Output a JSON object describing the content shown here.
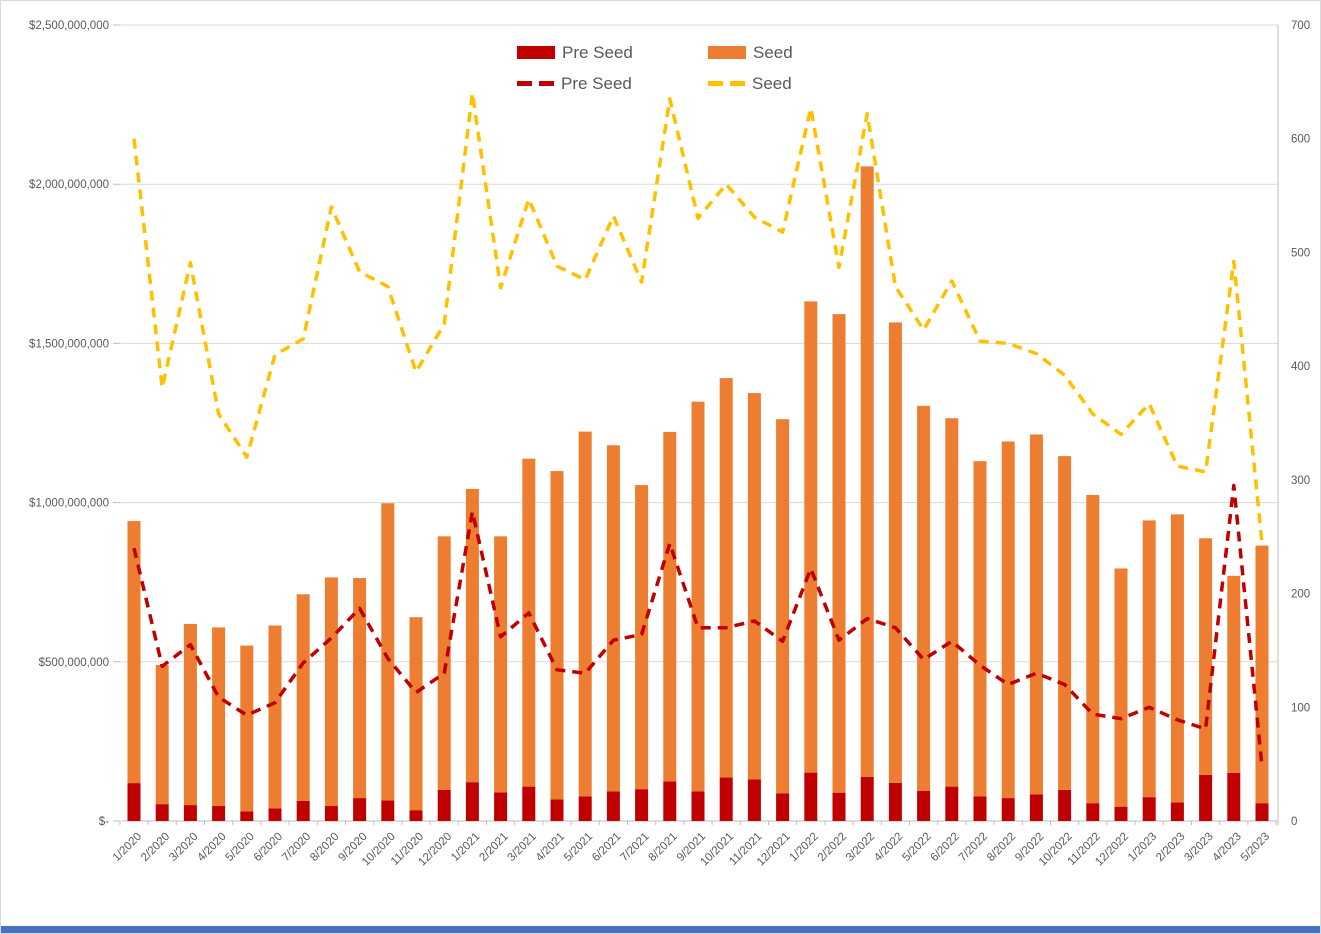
{
  "page": {
    "background": "#ffffff",
    "border_color": "#d9d9d9",
    "bottom_bar_color": "#4472c4"
  },
  "legend": {
    "rows": [
      {
        "items": [
          {
            "label": "Pre Seed",
            "swatch": "bar",
            "color": "#c00000"
          },
          {
            "label": "Seed",
            "swatch": "bar",
            "color": "#ed7d31"
          }
        ]
      },
      {
        "items": [
          {
            "label": "Pre Seed",
            "swatch": "dash",
            "color": "#c00000"
          },
          {
            "label": "Seed",
            "swatch": "dash",
            "color": "#ffc000"
          }
        ]
      }
    ]
  },
  "chart_data": {
    "type": "combo: stacked bar (left $ axis) + dashed line (right count axis)",
    "title": "",
    "grid": true,
    "legend_position": "top-center",
    "categories": [
      "1/2020",
      "2/2020",
      "3/2020",
      "4/2020",
      "5/2020",
      "6/2020",
      "7/2020",
      "8/2020",
      "9/2020",
      "10/2020",
      "11/2020",
      "12/2020",
      "1/2021",
      "2/2021",
      "3/2021",
      "4/2021",
      "5/2021",
      "6/2021",
      "7/2021",
      "8/2021",
      "9/2021",
      "10/2021",
      "11/2021",
      "12/2021",
      "1/2022",
      "2/2022",
      "3/2022",
      "4/2022",
      "5/2022",
      "6/2022",
      "7/2022",
      "8/2022",
      "9/2022",
      "10/2022",
      "11/2022",
      "12/2022",
      "1/2023",
      "2/2023",
      "3/2023",
      "4/2023",
      "5/2023"
    ],
    "left_axis": {
      "label": "",
      "min": 0,
      "max": 2500000000,
      "unit": "USD",
      "ticks": [
        "$2,500,000,000",
        "$2,000,000,000",
        "$1,500,000,000",
        "$1,000,000,000",
        "$500,000,000",
        "$-"
      ]
    },
    "right_axis": {
      "label": "",
      "min": 0,
      "max": 700,
      "ticks": [
        "700",
        "600",
        "500",
        "400",
        "300",
        "200",
        "100",
        "0"
      ]
    },
    "series": [
      {
        "name": "Pre Seed",
        "chart": "stacked-bar",
        "axis": "left",
        "color": "#c00000",
        "unit": "USD millions (estimated)",
        "values": [
          119,
          53,
          50,
          47,
          30,
          40,
          63,
          47,
          72,
          65,
          34,
          98,
          122,
          90,
          108,
          68,
          77,
          93,
          100,
          124,
          93,
          137,
          131,
          87,
          152,
          89,
          139,
          120,
          95,
          108,
          77,
          72,
          84,
          98,
          56,
          45,
          75,
          58,
          145,
          151,
          56
        ]
      },
      {
        "name": "Seed",
        "chart": "stacked-bar",
        "axis": "left",
        "color": "#ed7d31",
        "unit": "USD millions (estimated)",
        "values": [
          823,
          437,
          569,
          561,
          521,
          574,
          649,
          718,
          691,
          933,
          606,
          796,
          921,
          804,
          1030,
          1031,
          1146,
          1087,
          955,
          1098,
          1224,
          1254,
          1213,
          1175,
          1480,
          1503,
          1917,
          1446,
          1209,
          1157,
          1053,
          1120,
          1130,
          1048,
          968,
          748,
          869,
          905,
          743,
          619,
          809
        ]
      },
      {
        "name": "Pre Seed",
        "chart": "dashed-line",
        "axis": "right",
        "color": "#c00000",
        "unit": "deal count (estimated)",
        "values": [
          240,
          136,
          155,
          109,
          93,
          104,
          139,
          161,
          187,
          143,
          113,
          130,
          272,
          162,
          183,
          133,
          130,
          159,
          164,
          244,
          170,
          170,
          176,
          158,
          222,
          159,
          178,
          170,
          142,
          158,
          137,
          120,
          130,
          120,
          94,
          90,
          100,
          89,
          81,
          295,
          48
        ]
      },
      {
        "name": "Seed",
        "chart": "dashed-line",
        "axis": "right",
        "color": "#ffc000",
        "unit": "deal count (estimated)",
        "values": [
          600,
          381,
          491,
          358,
          320,
          410,
          424,
          540,
          483,
          470,
          395,
          437,
          640,
          469,
          547,
          488,
          476,
          532,
          474,
          635,
          530,
          560,
          531,
          518,
          627,
          487,
          622,
          470,
          432,
          475,
          422,
          420,
          411,
          392,
          358,
          340,
          367,
          312,
          307,
          492,
          244
        ]
      }
    ]
  }
}
